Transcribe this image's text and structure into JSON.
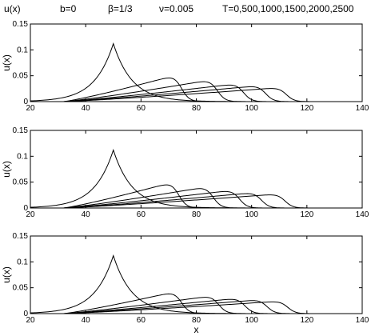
{
  "title_segments": [
    "u(x)",
    "b=0",
    "β=1/3",
    "ν=0.005",
    "T=0,500,1000,1500,2000,2500"
  ],
  "chart_data": [
    {
      "type": "line",
      "ylabel": "u(x)",
      "xlabel": "",
      "xlim": [
        20,
        140
      ],
      "ylim": [
        0,
        0.15
      ],
      "xticks": [
        20,
        40,
        60,
        80,
        100,
        120,
        140
      ],
      "yticks": [
        0,
        0.05,
        0.1,
        0.15
      ],
      "ytick_labels": [
        "0",
        "0.05",
        "0.1",
        "0.15"
      ],
      "series": [
        {
          "T": 0,
          "center": 50,
          "peak": 0.112,
          "kind": "peakon"
        },
        {
          "T": 500,
          "front": 74.5,
          "peak": 0.054,
          "kind": "shock"
        },
        {
          "T": 1000,
          "front": 87.5,
          "peak": 0.044,
          "kind": "shock"
        },
        {
          "T": 1500,
          "front": 97,
          "peak": 0.036,
          "kind": "shock"
        },
        {
          "T": 2000,
          "front": 105,
          "peak": 0.032,
          "kind": "shock"
        },
        {
          "T": 2500,
          "front": 112.5,
          "peak": 0.028,
          "kind": "shock"
        }
      ]
    },
    {
      "type": "line",
      "ylabel": "u(x)",
      "xlabel": "",
      "xlim": [
        20,
        140
      ],
      "ylim": [
        0,
        0.15
      ],
      "xticks": [
        20,
        40,
        60,
        80,
        100,
        120,
        140
      ],
      "yticks": [
        0,
        0.05,
        0.1,
        0.15
      ],
      "ytick_labels": [
        "0",
        "0.05",
        "0.1",
        "0.15"
      ],
      "series": [
        {
          "T": 0,
          "center": 50,
          "peak": 0.112,
          "kind": "peakon"
        },
        {
          "T": 500,
          "front": 73.5,
          "peak": 0.053,
          "kind": "shock"
        },
        {
          "T": 1000,
          "front": 86,
          "peak": 0.043,
          "kind": "shock"
        },
        {
          "T": 1500,
          "front": 95.5,
          "peak": 0.036,
          "kind": "shock"
        },
        {
          "T": 2000,
          "front": 103.5,
          "peak": 0.031,
          "kind": "shock"
        },
        {
          "T": 2500,
          "front": 112,
          "peak": 0.028,
          "kind": "shock"
        }
      ]
    },
    {
      "type": "line",
      "ylabel": "u(x)",
      "xlabel": "x",
      "xlim": [
        20,
        140
      ],
      "ylim": [
        0,
        0.15
      ],
      "xticks": [
        20,
        40,
        60,
        80,
        100,
        120,
        140
      ],
      "yticks": [
        0,
        0.05,
        0.1,
        0.15
      ],
      "ytick_labels": [
        "0",
        "0.05",
        "0.1",
        "0.15"
      ],
      "series": [
        {
          "T": 0,
          "center": 50,
          "peak": 0.112,
          "kind": "peakon"
        },
        {
          "T": 500,
          "front": 74.5,
          "peak": 0.045,
          "kind": "shock"
        },
        {
          "T": 1000,
          "front": 88,
          "peak": 0.036,
          "kind": "shock"
        },
        {
          "T": 1500,
          "front": 97.5,
          "peak": 0.031,
          "kind": "shock"
        },
        {
          "T": 2000,
          "front": 105.5,
          "peak": 0.028,
          "kind": "shock"
        },
        {
          "T": 2500,
          "front": 113,
          "peak": 0.025,
          "kind": "shock"
        }
      ]
    }
  ]
}
